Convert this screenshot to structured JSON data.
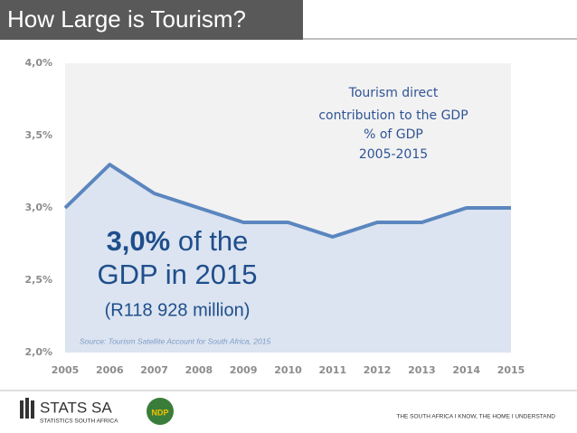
{
  "title_bar": {
    "title": "How Large is Tourism?"
  },
  "chart_data": {
    "type": "area",
    "title": [
      "Tourism direct",
      "contribution to the GDP",
      "% of GDP",
      "2005-2015"
    ],
    "x": [
      2005,
      2006,
      2007,
      2008,
      2009,
      2010,
      2011,
      2012,
      2013,
      2014,
      2015
    ],
    "values": [
      3.0,
      3.3,
      3.1,
      3.0,
      2.9,
      2.9,
      2.8,
      2.9,
      2.9,
      3.0,
      3.0
    ],
    "color": "#5b86bf",
    "fill": "#dbe4f0",
    "xlim": [
      2005,
      2015
    ],
    "xticks": [
      2005,
      2006,
      2007,
      2008,
      2009,
      2010,
      2011,
      2012,
      2013,
      2014,
      2015
    ],
    "ylim": [
      2.0,
      4.0
    ],
    "yticks": [
      {
        "value": 2.0,
        "label": "2,0%"
      },
      {
        "value": 2.5,
        "label": "2,5%"
      },
      {
        "value": 3.0,
        "label": "3,0%"
      },
      {
        "value": 3.5,
        "label": "3,5%"
      },
      {
        "value": 4.0,
        "label": "4,0%"
      }
    ],
    "grid": false,
    "annotation": {
      "highlight": "3,0%",
      "rest": " of the",
      "line2": "GDP in 2015",
      "line3": "(R118 928 million)"
    },
    "source": "Source: Tourism Satellite Account for South Africa, 2015"
  },
  "footer": {
    "logo": "STATS SA",
    "logo_sub": "STATISTICS SOUTH AFRICA",
    "ndp": "NDP",
    "slogan": "THE SOUTH AFRICA I KNOW, THE HOME I UNDERSTAND"
  }
}
